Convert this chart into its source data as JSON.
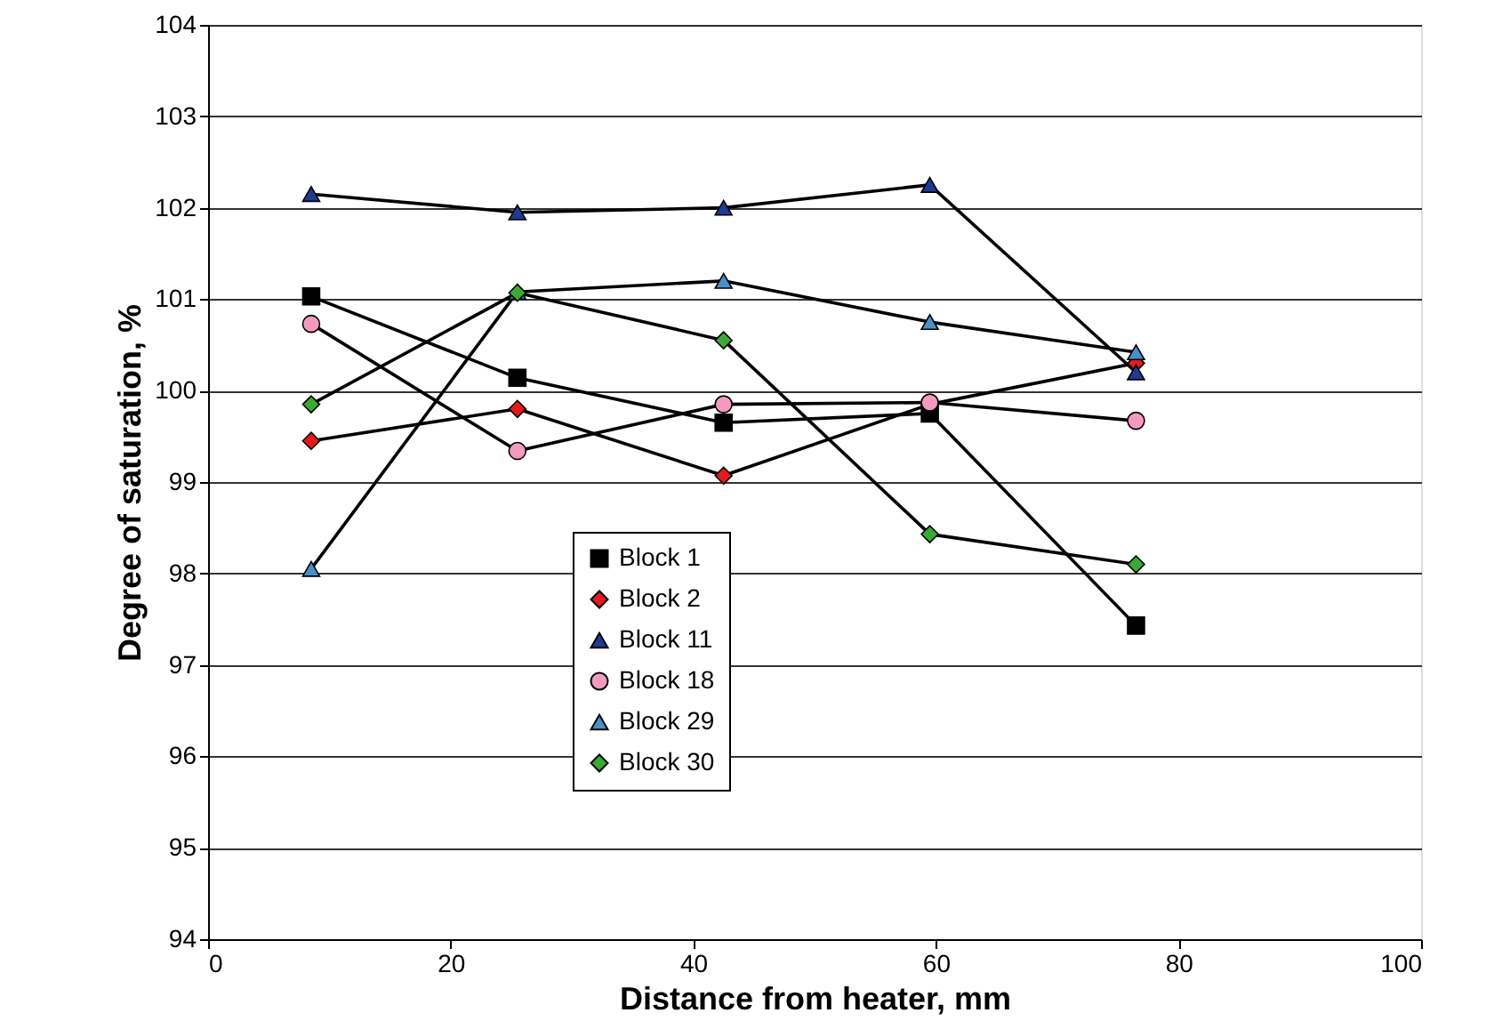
{
  "chart_data": {
    "type": "line",
    "xlabel": "Distance from heater, mm",
    "ylabel": "Degree of saturation, %",
    "x": [
      8.5,
      25.5,
      42.5,
      59.5,
      76.5
    ],
    "series": [
      {
        "name": "Block 1",
        "color": "#000000",
        "marker": "square",
        "values": [
          101.03,
          100.14,
          99.65,
          99.75,
          97.43
        ]
      },
      {
        "name": "Block 2",
        "color": "#e41a1c",
        "marker": "diamond",
        "values": [
          99.45,
          99.8,
          99.07,
          99.85,
          100.3
        ]
      },
      {
        "name": "Block 11",
        "color": "#1f3a93",
        "marker": "triangle",
        "values": [
          102.15,
          101.95,
          102.0,
          102.25,
          100.2
        ]
      },
      {
        "name": "Block 18",
        "color": "#f49ac1",
        "marker": "circle",
        "values": [
          100.73,
          99.34,
          99.85,
          99.87,
          99.67
        ]
      },
      {
        "name": "Block 29",
        "color": "#4a90c8",
        "marker": "triangle",
        "values": [
          98.05,
          101.08,
          101.2,
          100.75,
          100.42
        ]
      },
      {
        "name": "Block 30",
        "color": "#3aaa35",
        "marker": "diamond",
        "values": [
          99.85,
          101.07,
          100.55,
          98.43,
          98.1
        ]
      }
    ],
    "xlim": [
      0,
      100
    ],
    "xticks": [
      0,
      20,
      40,
      60,
      80,
      100
    ],
    "ylim": [
      94,
      104
    ],
    "yticks": [
      94,
      95,
      96,
      97,
      98,
      99,
      100,
      101,
      102,
      103,
      104
    ],
    "grid": "y",
    "legend": "bottom",
    "line_style": "solid"
  }
}
